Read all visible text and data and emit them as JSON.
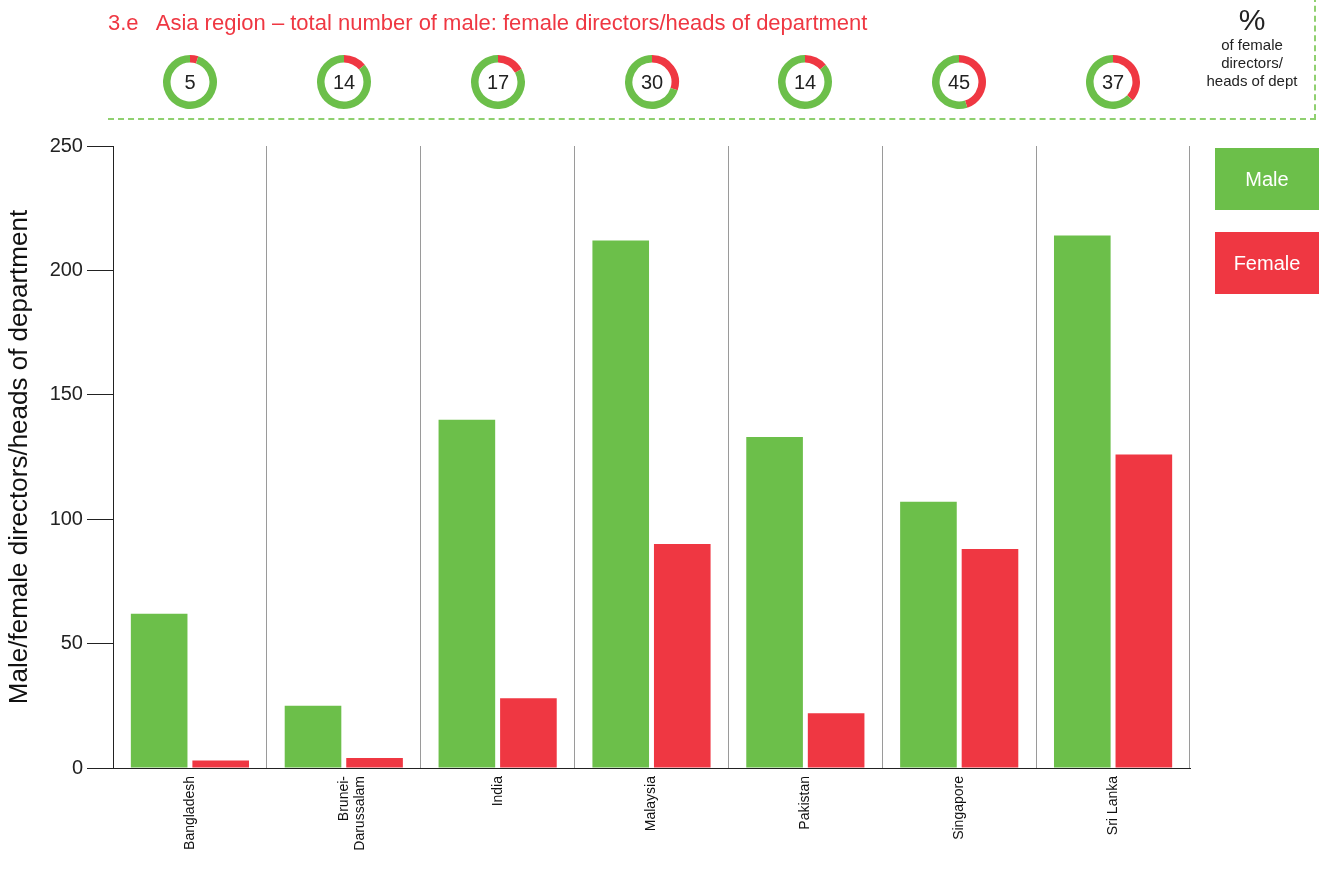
{
  "chart_data": [
    {
      "type": "bar",
      "title": "3.e   Asia region – total number of male: female directors/heads of department",
      "ylabel": "Male/female directors/heads of department",
      "categories": [
        "Bangladesh",
        "Brunei-\nDarussalam",
        "India",
        "Malaysia",
        "Pakistan",
        "Singapore",
        "Sri Lanka"
      ],
      "series": [
        {
          "name": "Male",
          "color": "#6cbf4a",
          "values": [
            62,
            25,
            140,
            212,
            133,
            107,
            214
          ]
        },
        {
          "name": "Female",
          "color": "#ef3742",
          "values": [
            3,
            4,
            28,
            90,
            22,
            88,
            126
          ]
        }
      ],
      "ylim": [
        0,
        250
      ],
      "yticks": [
        0,
        50,
        100,
        150,
        200,
        250
      ],
      "grid": "x",
      "legend": "right",
      "annotations": [
        "%\nof female\ndirectors/\nheads of dept"
      ]
    },
    {
      "type": "donut",
      "categories": [
        null,
        null
      ],
      "values": [
        5,
        95
      ],
      "colors": [
        "#ef3742",
        "#6cbf4a"
      ],
      "value_labels": [
        "5",
        null
      ]
    },
    {
      "type": "donut",
      "categories": [
        null,
        null
      ],
      "values": [
        14,
        86
      ],
      "colors": [
        "#ef3742",
        "#6cbf4a"
      ],
      "value_labels": [
        "14",
        null
      ]
    },
    {
      "type": "donut",
      "categories": [
        null,
        null
      ],
      "values": [
        17,
        83
      ],
      "colors": [
        "#ef3742",
        "#6cbf4a"
      ],
      "value_labels": [
        "17",
        null
      ]
    },
    {
      "type": "donut",
      "categories": [
        null,
        null
      ],
      "values": [
        30,
        70
      ],
      "colors": [
        "#ef3742",
        "#6cbf4a"
      ],
      "value_labels": [
        "30",
        null
      ]
    },
    {
      "type": "donut",
      "categories": [
        null,
        null
      ],
      "values": [
        14,
        86
      ],
      "colors": [
        "#ef3742",
        "#6cbf4a"
      ],
      "value_labels": [
        "14",
        null
      ]
    },
    {
      "type": "donut",
      "categories": [
        null,
        null
      ],
      "values": [
        45,
        55
      ],
      "colors": [
        "#ef3742",
        "#6cbf4a"
      ],
      "value_labels": [
        "45",
        null
      ]
    },
    {
      "type": "donut",
      "categories": [
        null,
        null
      ],
      "values": [
        37,
        63
      ],
      "colors": [
        "#ef3742",
        "#6cbf4a"
      ],
      "value_labels": [
        "37",
        null
      ]
    }
  ]
}
